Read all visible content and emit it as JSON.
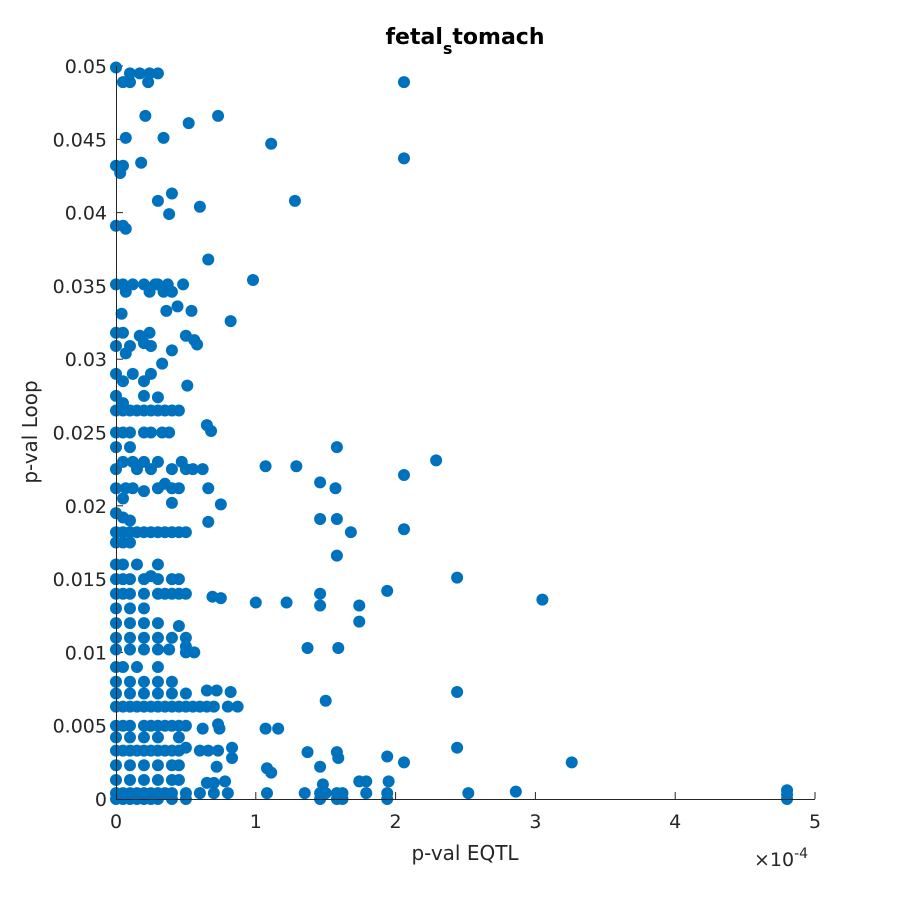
{
  "chart_data": {
    "type": "scatter",
    "title_main_start": "fetal",
    "title_subscript": "s",
    "title_main_end": "tomach",
    "xlabel": "p-val EQTL",
    "ylabel": "p-val Loop",
    "x_exponent_prefix": "×10",
    "x_exponent_power": "-4",
    "xlim": [
      0,
      5
    ],
    "ylim": [
      0,
      0.05
    ],
    "x_ticks": [
      0,
      1,
      2,
      3,
      4,
      5
    ],
    "x_tick_labels": [
      "0",
      "1",
      "2",
      "3",
      "4",
      "5"
    ],
    "y_ticks": [
      0,
      0.005,
      0.01,
      0.015,
      0.02,
      0.025,
      0.03,
      0.035,
      0.04,
      0.045,
      0.05
    ],
    "y_tick_labels": [
      "0",
      "0.005",
      "0.01",
      "0.015",
      "0.02",
      "0.025",
      "0.03",
      "0.035",
      "0.04",
      "0.045",
      "0.05"
    ],
    "grid": false,
    "marker_color": "#0072BD",
    "x_units_note": "x values in units of 1e-4",
    "points": [
      [
        0.0,
        0.0499
      ],
      [
        0.05,
        0.0489
      ],
      [
        0.1,
        0.0489
      ],
      [
        0.1,
        0.0495
      ],
      [
        0.17,
        0.0495
      ],
      [
        0.23,
        0.0489
      ],
      [
        0.24,
        0.0495
      ],
      [
        0.3,
        0.0495
      ],
      [
        0.07,
        0.0451
      ],
      [
        0.21,
        0.0466
      ],
      [
        0.34,
        0.0451
      ],
      [
        0.52,
        0.0461
      ],
      [
        0.73,
        0.0466
      ],
      [
        1.11,
        0.0447
      ],
      [
        2.06,
        0.0489
      ],
      [
        2.06,
        0.0437
      ],
      [
        0.0,
        0.0432
      ],
      [
        0.05,
        0.0432
      ],
      [
        0.03,
        0.0427
      ],
      [
        0.18,
        0.0434
      ],
      [
        0.3,
        0.0408
      ],
      [
        0.38,
        0.0399
      ],
      [
        0.4,
        0.0413
      ],
      [
        0.6,
        0.0404
      ],
      [
        1.28,
        0.0408
      ],
      [
        0.0,
        0.0391
      ],
      [
        0.05,
        0.0391
      ],
      [
        0.07,
        0.0389
      ],
      [
        0.66,
        0.0368
      ],
      [
        0.98,
        0.0354
      ],
      [
        0.0,
        0.0351
      ],
      [
        0.05,
        0.0351
      ],
      [
        0.07,
        0.0346
      ],
      [
        0.12,
        0.0351
      ],
      [
        0.2,
        0.0351
      ],
      [
        0.24,
        0.0346
      ],
      [
        0.28,
        0.0351
      ],
      [
        0.3,
        0.0351
      ],
      [
        0.34,
        0.0346
      ],
      [
        0.37,
        0.0351
      ],
      [
        0.4,
        0.0346
      ],
      [
        0.44,
        0.0336
      ],
      [
        0.48,
        0.0351
      ],
      [
        0.54,
        0.0333
      ],
      [
        0.36,
        0.0333
      ],
      [
        0.82,
        0.0326
      ],
      [
        0.04,
        0.0331
      ],
      [
        0.0,
        0.0318
      ],
      [
        0.05,
        0.0318
      ],
      [
        0.17,
        0.0316
      ],
      [
        0.24,
        0.0318
      ],
      [
        0.5,
        0.0316
      ],
      [
        0.56,
        0.0313
      ],
      [
        0.58,
        0.031
      ],
      [
        0.0,
        0.0309
      ],
      [
        0.07,
        0.0304
      ],
      [
        0.1,
        0.0309
      ],
      [
        0.2,
        0.0311
      ],
      [
        0.25,
        0.0309
      ],
      [
        0.4,
        0.0306
      ],
      [
        0.33,
        0.0297
      ],
      [
        0.0,
        0.029
      ],
      [
        0.05,
        0.0285
      ],
      [
        0.12,
        0.029
      ],
      [
        0.2,
        0.0285
      ],
      [
        0.25,
        0.029
      ],
      [
        0.51,
        0.0282
      ],
      [
        0.0,
        0.0275
      ],
      [
        0.05,
        0.027
      ],
      [
        0.2,
        0.0275
      ],
      [
        0.3,
        0.0274
      ],
      [
        0.0,
        0.0265
      ],
      [
        0.05,
        0.0265
      ],
      [
        0.1,
        0.0265
      ],
      [
        0.15,
        0.0265
      ],
      [
        0.2,
        0.0265
      ],
      [
        0.25,
        0.0265
      ],
      [
        0.3,
        0.0265
      ],
      [
        0.35,
        0.0265
      ],
      [
        0.4,
        0.0265
      ],
      [
        0.45,
        0.0265
      ],
      [
        0.0,
        0.025
      ],
      [
        0.05,
        0.025
      ],
      [
        0.1,
        0.025
      ],
      [
        0.2,
        0.025
      ],
      [
        0.25,
        0.025
      ],
      [
        0.33,
        0.025
      ],
      [
        0.38,
        0.025
      ],
      [
        0.65,
        0.0255
      ],
      [
        0.68,
        0.0251
      ],
      [
        0.0,
        0.024
      ],
      [
        0.1,
        0.024
      ],
      [
        1.58,
        0.024
      ],
      [
        0.05,
        0.023
      ],
      [
        0.12,
        0.023
      ],
      [
        0.2,
        0.023
      ],
      [
        0.3,
        0.023
      ],
      [
        0.0,
        0.0225
      ],
      [
        0.15,
        0.0225
      ],
      [
        0.25,
        0.0225
      ],
      [
        0.4,
        0.0225
      ],
      [
        0.47,
        0.023
      ],
      [
        0.5,
        0.0225
      ],
      [
        0.55,
        0.0225
      ],
      [
        0.62,
        0.0225
      ],
      [
        1.07,
        0.0227
      ],
      [
        1.29,
        0.0227
      ],
      [
        2.29,
        0.0231
      ],
      [
        2.06,
        0.0221
      ],
      [
        0.0,
        0.0212
      ],
      [
        0.07,
        0.0212
      ],
      [
        0.12,
        0.0212
      ],
      [
        0.2,
        0.021
      ],
      [
        0.3,
        0.0212
      ],
      [
        0.35,
        0.0215
      ],
      [
        0.4,
        0.0212
      ],
      [
        0.45,
        0.0212
      ],
      [
        0.66,
        0.0212
      ],
      [
        1.46,
        0.0216
      ],
      [
        1.57,
        0.0212
      ],
      [
        0.05,
        0.0205
      ],
      [
        0.4,
        0.0202
      ],
      [
        0.75,
        0.0201
      ],
      [
        0.0,
        0.0195
      ],
      [
        0.05,
        0.0192
      ],
      [
        0.1,
        0.019
      ],
      [
        1.46,
        0.0191
      ],
      [
        1.58,
        0.0191
      ],
      [
        0.66,
        0.0189
      ],
      [
        1.68,
        0.0182
      ],
      [
        2.06,
        0.0184
      ],
      [
        0.0,
        0.0182
      ],
      [
        0.05,
        0.0182
      ],
      [
        0.1,
        0.0182
      ],
      [
        0.15,
        0.0182
      ],
      [
        0.2,
        0.0182
      ],
      [
        0.25,
        0.0182
      ],
      [
        0.3,
        0.0182
      ],
      [
        0.35,
        0.0182
      ],
      [
        0.4,
        0.0182
      ],
      [
        0.45,
        0.0182
      ],
      [
        0.5,
        0.0182
      ],
      [
        0.0,
        0.0175
      ],
      [
        0.05,
        0.0175
      ],
      [
        0.1,
        0.0175
      ],
      [
        1.58,
        0.0166
      ],
      [
        0.0,
        0.016
      ],
      [
        0.05,
        0.016
      ],
      [
        0.15,
        0.016
      ],
      [
        0.3,
        0.016
      ],
      [
        0.0,
        0.015
      ],
      [
        0.05,
        0.015
      ],
      [
        0.1,
        0.015
      ],
      [
        0.2,
        0.015
      ],
      [
        0.25,
        0.0152
      ],
      [
        0.3,
        0.015
      ],
      [
        0.4,
        0.015
      ],
      [
        0.45,
        0.015
      ],
      [
        2.44,
        0.0151
      ],
      [
        0.0,
        0.014
      ],
      [
        0.05,
        0.014
      ],
      [
        0.1,
        0.014
      ],
      [
        0.2,
        0.014
      ],
      [
        0.3,
        0.014
      ],
      [
        0.35,
        0.014
      ],
      [
        0.4,
        0.014
      ],
      [
        0.45,
        0.014
      ],
      [
        0.5,
        0.014
      ],
      [
        0.69,
        0.0138
      ],
      [
        0.75,
        0.0137
      ],
      [
        1.0,
        0.0134
      ],
      [
        1.22,
        0.0134
      ],
      [
        1.46,
        0.014
      ],
      [
        1.46,
        0.0132
      ],
      [
        1.74,
        0.0132
      ],
      [
        1.94,
        0.0142
      ],
      [
        3.05,
        0.0136
      ],
      [
        0.0,
        0.013
      ],
      [
        0.1,
        0.013
      ],
      [
        0.2,
        0.013
      ],
      [
        1.74,
        0.0121
      ],
      [
        0.0,
        0.012
      ],
      [
        0.1,
        0.012
      ],
      [
        0.2,
        0.012
      ],
      [
        0.3,
        0.012
      ],
      [
        0.45,
        0.0118
      ],
      [
        0.0,
        0.011
      ],
      [
        0.1,
        0.011
      ],
      [
        0.2,
        0.011
      ],
      [
        0.3,
        0.011
      ],
      [
        0.4,
        0.011
      ],
      [
        0.5,
        0.011
      ],
      [
        0.0,
        0.0102
      ],
      [
        0.1,
        0.0102
      ],
      [
        0.2,
        0.0102
      ],
      [
        0.3,
        0.0102
      ],
      [
        0.38,
        0.0102
      ],
      [
        0.5,
        0.0104
      ],
      [
        0.5,
        0.01
      ],
      [
        0.56,
        0.01
      ],
      [
        1.37,
        0.0103
      ],
      [
        1.59,
        0.0103
      ],
      [
        0.0,
        0.009
      ],
      [
        0.05,
        0.009
      ],
      [
        0.15,
        0.009
      ],
      [
        0.3,
        0.009
      ],
      [
        0.0,
        0.008
      ],
      [
        0.1,
        0.008
      ],
      [
        0.2,
        0.008
      ],
      [
        0.3,
        0.008
      ],
      [
        0.4,
        0.008
      ],
      [
        0.0,
        0.0072
      ],
      [
        0.1,
        0.0072
      ],
      [
        0.2,
        0.0072
      ],
      [
        0.3,
        0.0072
      ],
      [
        0.4,
        0.0072
      ],
      [
        0.5,
        0.0072
      ],
      [
        0.65,
        0.0074
      ],
      [
        0.72,
        0.0074
      ],
      [
        0.82,
        0.0073
      ],
      [
        1.5,
        0.0067
      ],
      [
        2.44,
        0.0073
      ],
      [
        0.0,
        0.0063
      ],
      [
        0.05,
        0.0063
      ],
      [
        0.1,
        0.0063
      ],
      [
        0.15,
        0.0063
      ],
      [
        0.2,
        0.0063
      ],
      [
        0.25,
        0.0063
      ],
      [
        0.3,
        0.0063
      ],
      [
        0.35,
        0.0063
      ],
      [
        0.4,
        0.0063
      ],
      [
        0.45,
        0.0063
      ],
      [
        0.5,
        0.0063
      ],
      [
        0.55,
        0.0063
      ],
      [
        0.6,
        0.0063
      ],
      [
        0.65,
        0.0063
      ],
      [
        0.7,
        0.0063
      ],
      [
        0.8,
        0.0063
      ],
      [
        0.87,
        0.0063
      ],
      [
        0.0,
        0.005
      ],
      [
        0.05,
        0.005
      ],
      [
        0.1,
        0.005
      ],
      [
        0.2,
        0.005
      ],
      [
        0.25,
        0.005
      ],
      [
        0.3,
        0.005
      ],
      [
        0.35,
        0.005
      ],
      [
        0.4,
        0.005
      ],
      [
        0.45,
        0.005
      ],
      [
        0.5,
        0.005
      ],
      [
        0.62,
        0.0048
      ],
      [
        0.73,
        0.0051
      ],
      [
        0.74,
        0.0048
      ],
      [
        1.07,
        0.0048
      ],
      [
        1.16,
        0.0048
      ],
      [
        0.0,
        0.0042
      ],
      [
        0.1,
        0.0042
      ],
      [
        0.2,
        0.0042
      ],
      [
        0.3,
        0.0042
      ],
      [
        0.45,
        0.0042
      ],
      [
        0.0,
        0.0033
      ],
      [
        0.05,
        0.0033
      ],
      [
        0.1,
        0.0033
      ],
      [
        0.15,
        0.0033
      ],
      [
        0.2,
        0.0033
      ],
      [
        0.25,
        0.0033
      ],
      [
        0.3,
        0.0033
      ],
      [
        0.35,
        0.0033
      ],
      [
        0.4,
        0.0033
      ],
      [
        0.45,
        0.0033
      ],
      [
        0.5,
        0.0035
      ],
      [
        0.6,
        0.0033
      ],
      [
        0.66,
        0.0033
      ],
      [
        0.73,
        0.0033
      ],
      [
        0.83,
        0.0035
      ],
      [
        0.83,
        0.0028
      ],
      [
        1.37,
        0.0032
      ],
      [
        1.58,
        0.0032
      ],
      [
        1.59,
        0.0028
      ],
      [
        1.94,
        0.0029
      ],
      [
        2.06,
        0.0025
      ],
      [
        2.44,
        0.0035
      ],
      [
        3.26,
        0.0025
      ],
      [
        0.0,
        0.0023
      ],
      [
        0.1,
        0.0023
      ],
      [
        0.2,
        0.0023
      ],
      [
        0.3,
        0.0023
      ],
      [
        0.4,
        0.0023
      ],
      [
        0.45,
        0.0023
      ],
      [
        0.72,
        0.0022
      ],
      [
        1.08,
        0.0021
      ],
      [
        1.11,
        0.0018
      ],
      [
        1.46,
        0.0022
      ],
      [
        0.0,
        0.0013
      ],
      [
        0.1,
        0.0013
      ],
      [
        0.2,
        0.0013
      ],
      [
        0.3,
        0.0013
      ],
      [
        0.4,
        0.0013
      ],
      [
        0.45,
        0.0013
      ],
      [
        0.65,
        0.0011
      ],
      [
        0.7,
        0.0011
      ],
      [
        0.78,
        0.0012
      ],
      [
        1.48,
        0.001
      ],
      [
        1.74,
        0.0012
      ],
      [
        1.79,
        0.0012
      ],
      [
        1.95,
        0.0012
      ],
      [
        0.0,
        0.0004
      ],
      [
        0.05,
        0.0004
      ],
      [
        0.1,
        0.0004
      ],
      [
        0.15,
        0.0004
      ],
      [
        0.2,
        0.0004
      ],
      [
        0.25,
        0.0004
      ],
      [
        0.3,
        0.0004
      ],
      [
        0.35,
        0.0004
      ],
      [
        0.4,
        0.0004
      ],
      [
        0.5,
        0.0004
      ],
      [
        0.6,
        0.0004
      ],
      [
        0.7,
        0.0004
      ],
      [
        0.8,
        0.0004
      ],
      [
        1.08,
        0.0004
      ],
      [
        1.35,
        0.0004
      ],
      [
        1.46,
        0.0004
      ],
      [
        1.5,
        0.0004
      ],
      [
        1.58,
        0.0004
      ],
      [
        1.62,
        0.0004
      ],
      [
        1.79,
        0.0004
      ],
      [
        1.94,
        0.0004
      ],
      [
        2.52,
        0.0004
      ],
      [
        2.86,
        0.0005
      ],
      [
        0.0,
        0.0
      ],
      [
        0.05,
        0.0
      ],
      [
        0.1,
        0.0
      ],
      [
        0.15,
        0.0
      ],
      [
        0.2,
        0.0
      ],
      [
        0.25,
        0.0
      ],
      [
        0.3,
        0.0
      ],
      [
        0.4,
        0.0
      ],
      [
        0.5,
        0.0
      ],
      [
        1.46,
        0.0
      ],
      [
        1.58,
        0.0
      ],
      [
        1.62,
        0.0
      ],
      [
        1.94,
        0.0
      ],
      [
        4.8,
        0.0006
      ],
      [
        4.8,
        0.0003
      ],
      [
        4.8,
        0.0
      ]
    ]
  }
}
